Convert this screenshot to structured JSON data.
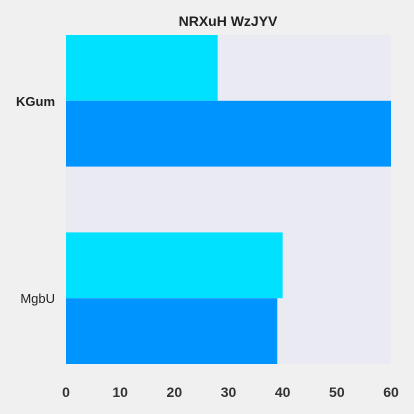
{
  "chart_data": {
    "type": "bar",
    "orientation": "horizontal",
    "title": "NRXuH WzJYV",
    "xlabel": "",
    "ylabel": "",
    "categories": [
      "KGum",
      "MgbU"
    ],
    "category_styles": [
      "bold",
      "normal"
    ],
    "series": [
      {
        "values": [
          28,
          40
        ],
        "color": "#00e0ff"
      },
      {
        "values": [
          60,
          39
        ],
        "color": "#0094ff"
      }
    ],
    "xlim": [
      0,
      60
    ],
    "xticks": [
      "0",
      "10",
      "20",
      "30",
      "40",
      "50",
      "60"
    ],
    "grid": false,
    "legend": "none",
    "plot_background": "#eaeaf2",
    "page_background": "#f0f0f0"
  }
}
